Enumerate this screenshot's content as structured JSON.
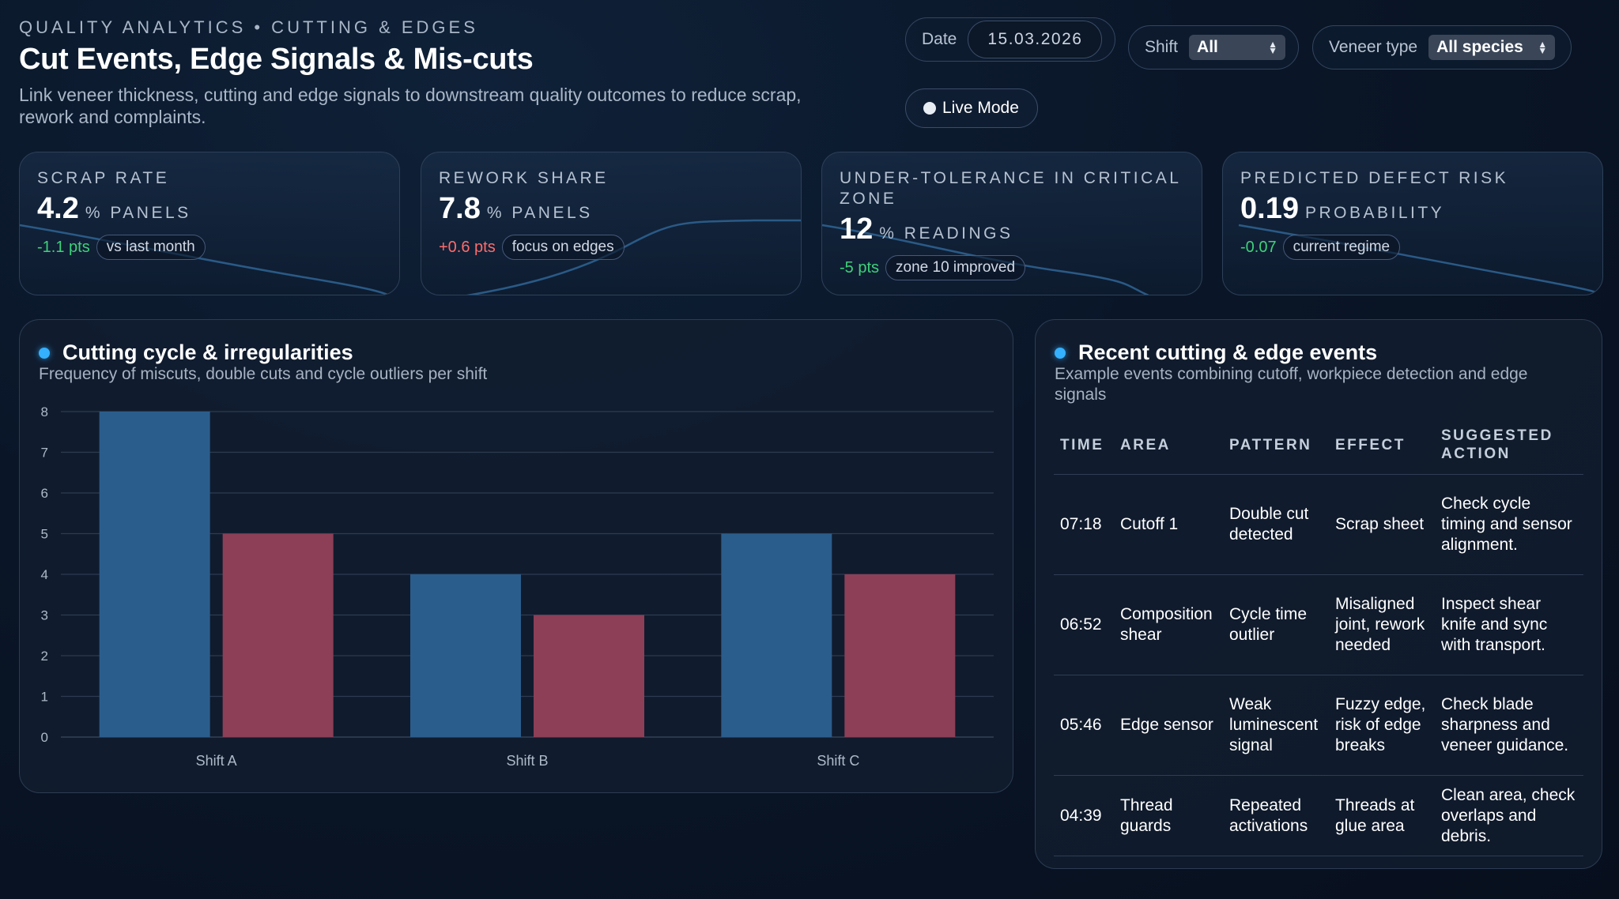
{
  "header": {
    "eyebrow": "QUALITY ANALYTICS • CUTTING & EDGES",
    "title": "Cut Events, Edge Signals & Mis-cuts",
    "subtitle": "Link veneer thickness, cutting and edge signals to downstream quality outcomes to reduce scrap, rework and complaints."
  },
  "controls": {
    "date_label": "Date",
    "date_value": "15.03.2026",
    "shift_label": "Shift",
    "shift_value": "All",
    "veneer_label": "Veneer type",
    "veneer_value": "All species",
    "live_label": "Live Mode"
  },
  "kpis": [
    {
      "label": "SCRAP RATE",
      "value": "4.2",
      "unit": "% PANELS",
      "delta": "-1.1 pts",
      "delta_sign": "pos",
      "tag": "vs last month"
    },
    {
      "label": "REWORK SHARE",
      "value": "7.8",
      "unit": "% PANELS",
      "delta": "+0.6 pts",
      "delta_sign": "neg",
      "tag": "focus on edges"
    },
    {
      "label": "UNDER-TOLERANCE IN CRITICAL ZONE",
      "value": "12",
      "unit": "% READINGS",
      "delta": "-5 pts",
      "delta_sign": "pos",
      "tag": "zone 10 improved"
    },
    {
      "label": "PREDICTED DEFECT RISK",
      "value": "0.19",
      "unit": "PROBABILITY",
      "delta": "-0.07",
      "delta_sign": "pos",
      "tag": "current regime"
    }
  ],
  "chart_panel": {
    "title": "Cutting cycle & irregularities",
    "subtitle": "Frequency of miscuts, double cuts and cycle outliers per shift"
  },
  "chart_data": {
    "type": "bar",
    "categories": [
      "Shift A",
      "Shift B",
      "Shift C"
    ],
    "series": [
      {
        "values": [
          8,
          4,
          5
        ],
        "color": "#2b5d8c"
      },
      {
        "values": [
          5,
          3,
          4
        ],
        "color": "#8c3f57"
      }
    ],
    "yticks": [
      "0",
      "1",
      "2",
      "3",
      "4",
      "5",
      "6",
      "7",
      "8"
    ],
    "ylim": [
      0,
      8
    ],
    "grid": true
  },
  "events_panel": {
    "title": "Recent cutting & edge events",
    "subtitle": "Example events combining cutoff, workpiece detection and edge signals",
    "columns": [
      "TIME",
      "AREA",
      "PATTERN",
      "EFFECT",
      "SUGGESTED ACTION"
    ],
    "rows": [
      [
        "07:18",
        "Cutoff 1",
        "Double cut detected",
        "Scrap sheet",
        "Check cycle timing and sensor alignment."
      ],
      [
        "06:52",
        "Composition shear",
        "Cycle time outlier",
        "Misaligned joint, rework needed",
        "Inspect shear knife and sync with transport."
      ],
      [
        "05:46",
        "Edge sensor",
        "Weak luminescent signal",
        "Fuzzy edge, risk of edge breaks",
        "Check blade sharpness and veneer guidance."
      ],
      [
        "04:39",
        "Thread guards",
        "Repeated activations",
        "Threads at glue area",
        "Clean area, check overlaps and debris."
      ]
    ]
  }
}
